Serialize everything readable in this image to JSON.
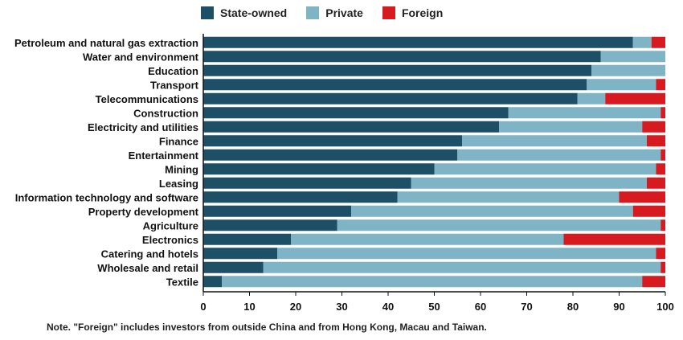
{
  "chart_data": {
    "type": "bar",
    "orientation": "horizontal",
    "stacked": true,
    "categories": [
      "Petroleum and natural gas extraction",
      "Water and environment",
      "Education",
      "Transport",
      "Telecommunications",
      "Construction",
      "Electricity and utilities",
      "Finance",
      "Entertainment",
      "Mining",
      "Leasing",
      "Information technology and software",
      "Property development",
      "Agriculture",
      "Electronics",
      "Catering and hotels",
      "Wholesale and retail",
      "Textile"
    ],
    "series": [
      {
        "name": "State-owned",
        "color": "#1d4f66",
        "values": [
          93,
          86,
          84,
          83,
          81,
          66,
          64,
          56,
          55,
          50,
          45,
          42,
          32,
          29,
          19,
          16,
          13,
          4
        ]
      },
      {
        "name": "Private",
        "color": "#7fb3c6",
        "values": [
          4,
          14,
          16,
          15,
          6,
          33,
          31,
          40,
          44,
          48,
          51,
          48,
          61,
          70,
          59,
          82,
          86,
          91
        ]
      },
      {
        "name": "Foreign",
        "color": "#d71920",
        "values": [
          3,
          0,
          0,
          2,
          13,
          1,
          5,
          4,
          1,
          2,
          4,
          10,
          7,
          1,
          22,
          2,
          1,
          5
        ]
      }
    ],
    "xlim": [
      0,
      100
    ],
    "xticks": [
      0,
      10,
      20,
      30,
      40,
      50,
      60,
      70,
      80,
      90,
      100
    ],
    "legend_position": "top"
  },
  "note": "Note. \"Foreign\" includes investors from outside China and from Hong Kong, Macau and Taiwan."
}
